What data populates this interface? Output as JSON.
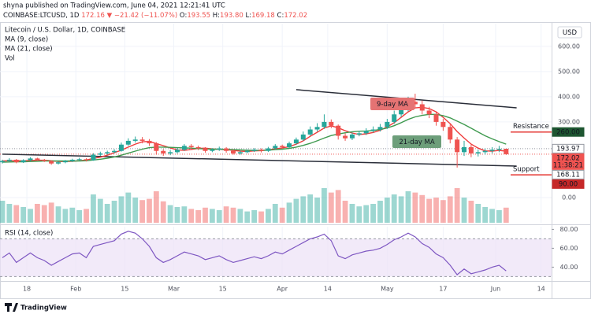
{
  "header": {
    "line1": "shyna published on TradingView.com, June 04, 2021 12:21:41 UTC",
    "symbol": "COINBASE:LTCUSD, 1D",
    "last": "172.16",
    "change": "▼ −21.42 (−11.07%)",
    "ohlc": [
      [
        "O:",
        "193.55"
      ],
      [
        "H:",
        "193.80"
      ],
      [
        "L:",
        "169.18"
      ],
      [
        "C:",
        "172.02"
      ]
    ]
  },
  "footer": {
    "brand": "TradingView"
  },
  "chart_data": {
    "type": "candlestick",
    "title": "Litecoin / U.S. Dollar, 1D, COINBASE",
    "currency": "USD",
    "up_color": "#26a69a",
    "down_color": "#ef5350",
    "grid": true,
    "x": [
      0,
      2,
      4,
      6,
      8,
      10,
      12,
      14,
      16,
      18,
      20,
      22,
      24,
      26,
      28,
      30,
      32,
      34,
      36,
      38,
      40,
      42,
      44,
      46,
      48,
      50,
      52,
      54,
      56,
      58,
      60,
      62,
      64,
      66,
      68,
      70,
      72,
      74,
      76,
      78,
      80,
      82,
      84,
      86,
      88,
      90,
      92,
      94,
      96,
      98,
      100,
      102,
      104,
      106,
      108,
      110,
      112,
      114,
      116,
      118,
      120,
      122,
      124,
      126,
      128,
      130,
      132,
      134,
      136,
      138,
      140,
      142,
      144
    ],
    "open": [
      140,
      145,
      150,
      140,
      148,
      155,
      150,
      145,
      135,
      140,
      145,
      150,
      152,
      148,
      170,
      175,
      180,
      185,
      210,
      225,
      230,
      225,
      215,
      185,
      175,
      180,
      190,
      205,
      200,
      195,
      185,
      190,
      195,
      185,
      175,
      180,
      185,
      190,
      185,
      195,
      205,
      200,
      215,
      230,
      250,
      270,
      280,
      300,
      285,
      245,
      235,
      250,
      255,
      265,
      270,
      280,
      300,
      330,
      350,
      380,
      370,
      345,
      330,
      300,
      280,
      230,
      180,
      200,
      175,
      180,
      185,
      190,
      193.55
    ],
    "high": [
      150,
      156,
      153,
      152,
      160,
      158,
      153,
      148,
      144,
      149,
      154,
      158,
      156,
      176,
      182,
      186,
      192,
      218,
      235,
      242,
      240,
      232,
      220,
      192,
      188,
      197,
      212,
      212,
      206,
      200,
      196,
      202,
      200,
      190,
      186,
      191,
      196,
      195,
      201,
      212,
      210,
      222,
      238,
      262,
      282,
      295,
      330,
      310,
      290,
      255,
      258,
      265,
      275,
      282,
      292,
      312,
      345,
      368,
      400,
      412,
      385,
      360,
      340,
      312,
      290,
      240,
      225,
      210,
      190,
      195,
      200,
      205,
      193.8
    ],
    "low": [
      135,
      141,
      136,
      137,
      145,
      146,
      141,
      130,
      131,
      136,
      141,
      146,
      143,
      146,
      165,
      170,
      175,
      182,
      205,
      218,
      215,
      205,
      170,
      165,
      168,
      175,
      185,
      192,
      188,
      178,
      180,
      185,
      178,
      170,
      170,
      176,
      181,
      179,
      181,
      190,
      194,
      196,
      210,
      225,
      245,
      262,
      272,
      275,
      230,
      225,
      228,
      243,
      248,
      258,
      262,
      272,
      292,
      320,
      342,
      355,
      330,
      315,
      285,
      265,
      215,
      119,
      165,
      160,
      163,
      170,
      175,
      180,
      169.18
    ],
    "close": [
      145,
      150,
      140,
      148,
      155,
      150,
      145,
      135,
      140,
      145,
      150,
      152,
      148,
      170,
      175,
      180,
      185,
      210,
      225,
      230,
      225,
      215,
      185,
      175,
      180,
      190,
      205,
      200,
      195,
      185,
      190,
      195,
      185,
      175,
      180,
      185,
      190,
      185,
      195,
      205,
      200,
      215,
      230,
      250,
      270,
      280,
      300,
      285,
      245,
      235,
      250,
      255,
      265,
      270,
      280,
      300,
      330,
      350,
      380,
      370,
      345,
      330,
      300,
      280,
      230,
      180,
      200,
      175,
      180,
      185,
      190,
      193.55,
      172.02
    ],
    "series": [
      {
        "name": "MA (9, close)",
        "color": "#ef3b3b",
        "values": [
          145,
          146,
          146,
          146,
          147,
          148,
          148,
          146,
          143,
          143,
          144,
          146,
          149,
          155,
          160,
          168,
          178,
          188,
          200,
          212,
          221,
          223,
          214,
          206,
          197,
          189,
          187,
          191,
          195,
          196,
          193,
          191,
          190,
          187,
          184,
          183,
          185,
          186,
          189,
          193,
          197,
          202,
          212,
          225,
          243,
          259,
          276,
          284,
          277,
          265,
          256,
          250,
          253,
          258,
          267,
          280,
          297,
          318,
          340,
          356,
          358,
          353,
          340,
          318,
          293,
          262,
          236,
          212,
          196,
          185,
          184,
          187,
          184
        ]
      },
      {
        "name": "MA (21, close)",
        "color": "#3f9a4f",
        "values": [
          140,
          141,
          142,
          142,
          143,
          144,
          145,
          145,
          145,
          145,
          145,
          145,
          146,
          149,
          152,
          156,
          161,
          168,
          176,
          184,
          192,
          198,
          200,
          200,
          199,
          198,
          197,
          196,
          194,
          193,
          192,
          192,
          191,
          190,
          189,
          188,
          187,
          187,
          188,
          190,
          192,
          195,
          200,
          207,
          215,
          225,
          236,
          246,
          252,
          257,
          261,
          263,
          264,
          266,
          270,
          276,
          285,
          297,
          310,
          320,
          326,
          330,
          330,
          325,
          316,
          303,
          290,
          275,
          260,
          245,
          233,
          222,
          212
        ]
      }
    ],
    "volume": {
      "name": "Vol",
      "vlim": [
        0,
        100
      ],
      "values": [
        35,
        30,
        28,
        25,
        22,
        30,
        28,
        32,
        26,
        22,
        24,
        20,
        22,
        45,
        38,
        30,
        35,
        42,
        48,
        40,
        36,
        38,
        50,
        34,
        28,
        25,
        26,
        22,
        20,
        24,
        22,
        20,
        26,
        24,
        22,
        18,
        20,
        18,
        22,
        30,
        24,
        32,
        38,
        42,
        45,
        40,
        55,
        48,
        52,
        35,
        30,
        26,
        28,
        30,
        35,
        40,
        45,
        42,
        50,
        48,
        44,
        38,
        40,
        36,
        42,
        55,
        40,
        35,
        30,
        25,
        22,
        20,
        24
      ]
    },
    "xlim": [
      0,
      157
    ],
    "xticks": [
      {
        "value": 7,
        "label": "18"
      },
      {
        "value": 21,
        "label": "Feb"
      },
      {
        "value": 35,
        "label": "15"
      },
      {
        "value": 49,
        "label": "Mar"
      },
      {
        "value": 63,
        "label": "15"
      },
      {
        "value": 80,
        "label": "Apr"
      },
      {
        "value": 93,
        "label": "14"
      },
      {
        "value": 110,
        "label": "May"
      },
      {
        "value": 126,
        "label": "17"
      },
      {
        "value": 141,
        "label": "Jun"
      },
      {
        "value": 154,
        "label": "14"
      }
    ],
    "ylim": [
      -100,
      690
    ],
    "yticks": [
      {
        "value": 0,
        "label": "0.00"
      },
      {
        "value": 300,
        "label": "300.00"
      },
      {
        "value": 400,
        "label": "400.00"
      },
      {
        "value": 500,
        "label": "500.00"
      },
      {
        "value": 600,
        "label": "600.00"
      }
    ],
    "trendlines": [
      {
        "x": [
          84,
          147
        ],
        "values": [
          428,
          356
        ]
      },
      {
        "x": [
          0,
          147
        ],
        "values": [
          172,
          125
        ]
      }
    ],
    "levels": [
      {
        "name": "Resistance",
        "value": 260,
        "line_color": "#e53935",
        "label_color": "#e53935"
      },
      {
        "name": "Support",
        "value": 90,
        "line_color": "#e53935",
        "label_color": "#2e7d32"
      }
    ],
    "annotations": [
      {
        "text": "9-day MA",
        "color": "#e57373"
      },
      {
        "text": "21-day MA",
        "color": "#6d9e7a"
      }
    ],
    "price_labels": [
      {
        "value": 260,
        "label": "260.00",
        "bg": "#1e5631",
        "fg": "#ffffff",
        "line": false
      },
      {
        "value": 193.97,
        "label": "193.97",
        "bg": "#ffffff",
        "fg": "#131722",
        "line": true,
        "line_color": "#9598a1"
      },
      {
        "value": 172.02,
        "label": "172.02",
        "sublabel": "11:38:21",
        "bg": "#ef5350",
        "fg": "#ffffff",
        "line": true,
        "line_color": "#ef5350"
      },
      {
        "value": 168.11,
        "label": "168.11",
        "bg": "#ffffff",
        "fg": "#131722",
        "line": false
      },
      {
        "value": 90,
        "label": "90.00",
        "bg": "#c62828",
        "fg": "#ffffff",
        "line": false
      }
    ],
    "rsi": {
      "name": "RSI (14, close)",
      "color": "#7e57c2",
      "band": [
        30,
        70
      ],
      "band_color": "#ede1f7",
      "ylim": [
        27,
        82
      ],
      "yticks": [
        {
          "value": 40,
          "label": "40.00"
        },
        {
          "value": 60,
          "label": "60.00"
        },
        {
          "value": 80,
          "label": "80.00"
        }
      ],
      "values": [
        50,
        55,
        45,
        50,
        55,
        50,
        47,
        42,
        46,
        50,
        54,
        55,
        50,
        62,
        64,
        66,
        68,
        75,
        78,
        76,
        70,
        62,
        50,
        45,
        48,
        52,
        56,
        54,
        52,
        48,
        50,
        52,
        48,
        45,
        47,
        49,
        51,
        49,
        52,
        56,
        54,
        58,
        62,
        66,
        70,
        72,
        75,
        68,
        52,
        49,
        53,
        55,
        57,
        58,
        60,
        64,
        69,
        72,
        76,
        72,
        65,
        61,
        54,
        50,
        42,
        32,
        38,
        33,
        35,
        37,
        40,
        42,
        36
      ]
    }
  }
}
